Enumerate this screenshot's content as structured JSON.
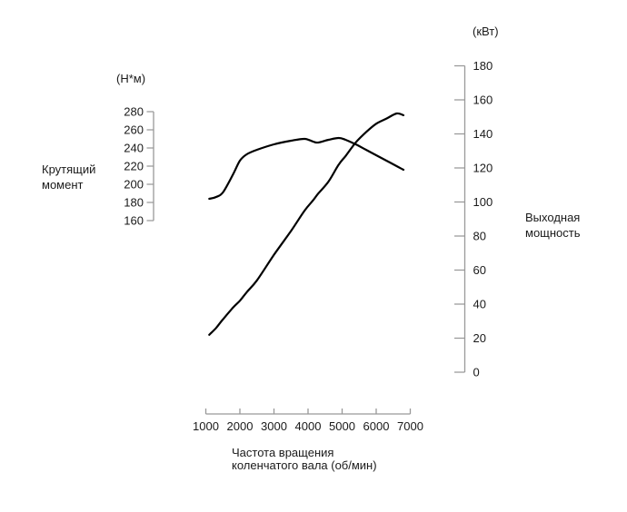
{
  "chart_data": {
    "type": "line",
    "grid": false,
    "legend_position": "none",
    "x_axis": {
      "caption_line1": "Частота вращения",
      "caption_line2": "коленчатого вала (об/мин)",
      "ticks": [
        1000,
        2000,
        3000,
        4000,
        5000,
        6000,
        7000
      ],
      "range": [
        1000,
        7000
      ]
    },
    "left_axis": {
      "unit": "(Н*м)",
      "title_line1": "Крутящий",
      "title_line2": "момент",
      "ticks": [
        280,
        260,
        240,
        220,
        200,
        180,
        160
      ],
      "range": [
        160,
        280
      ]
    },
    "right_axis": {
      "unit": "(кВт)",
      "title_line1": "Выходная",
      "title_line2": "мощность",
      "ticks": [
        180,
        160,
        140,
        120,
        100,
        80,
        60,
        40,
        20,
        0
      ],
      "range": [
        0,
        180
      ]
    },
    "x": [
      1100,
      1300,
      1500,
      1800,
      2000,
      2200,
      2500,
      3000,
      3500,
      3900,
      4150,
      4300,
      4600,
      4900,
      5100,
      5400,
      5700,
      6000,
      6300,
      6600,
      6800
    ],
    "series": [
      {
        "name": "Крутящий момент",
        "unit": "Н*м",
        "axis": "left",
        "values": [
          184,
          186,
          191,
          211,
          226,
          233,
          238,
          244,
          248,
          250,
          247,
          246,
          249,
          251,
          249,
          244,
          238,
          232,
          226,
          220,
          216
        ]
      },
      {
        "name": "Выходная мощность",
        "unit": "кВт",
        "axis": "right",
        "values": [
          22,
          26,
          31,
          38,
          42,
          47,
          54,
          69,
          83,
          95,
          101,
          105,
          112,
          122,
          127,
          135,
          141,
          146,
          149,
          152,
          151
        ]
      }
    ]
  },
  "colors": {
    "background": "#ffffff",
    "axis_line": "#999999",
    "curve": "#000000",
    "text": "#1a1a1a"
  }
}
